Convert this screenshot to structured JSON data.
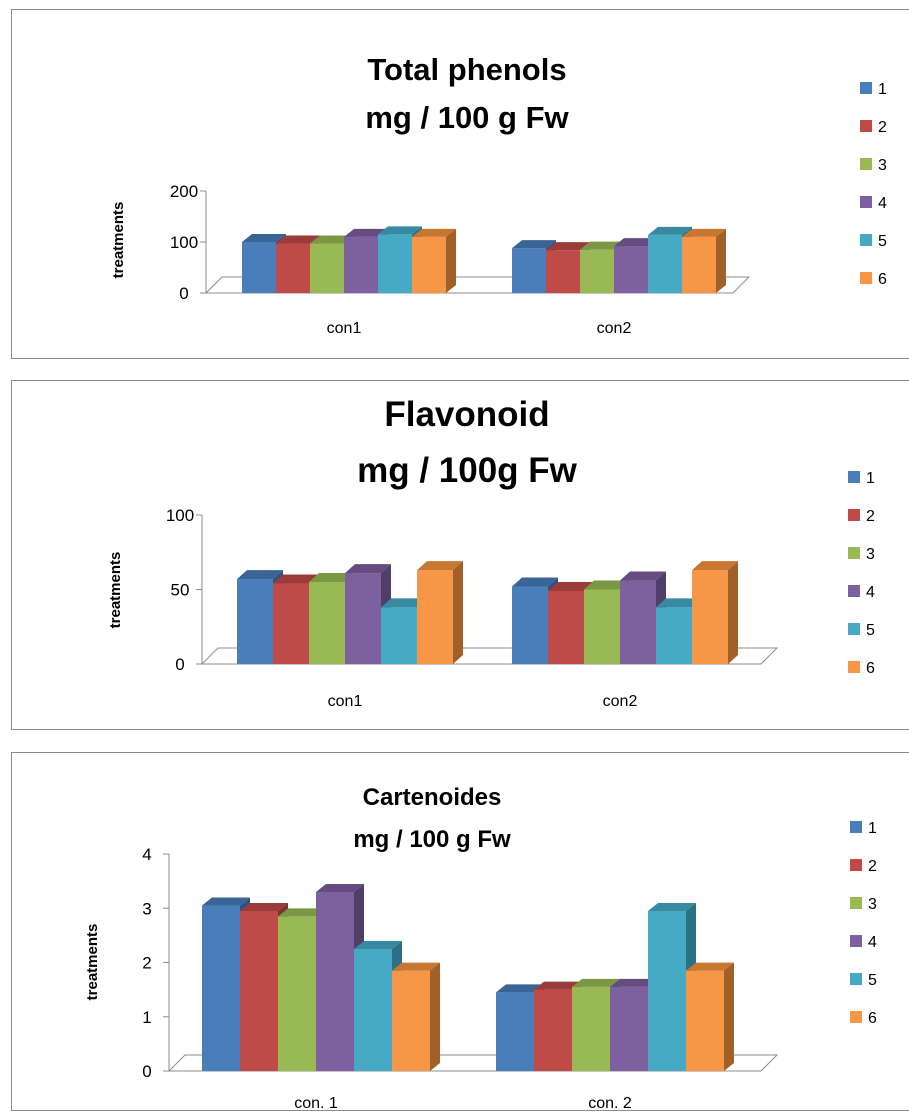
{
  "series_colors": {
    "1": {
      "front": "#4a7ebb",
      "top": "#3a6496",
      "side": "#2f5282"
    },
    "2": {
      "front": "#be4b48",
      "top": "#9c3c3a",
      "side": "#7e302e"
    },
    "3": {
      "front": "#98b954",
      "top": "#7b9744",
      "side": "#647b37"
    },
    "4": {
      "front": "#7d60a0",
      "top": "#654d82",
      "side": "#503d68"
    },
    "5": {
      "front": "#46aac5",
      "top": "#378aa1",
      "side": "#2c7083"
    },
    "6": {
      "front": "#f79646",
      "top": "#c87733",
      "side": "#a06028"
    }
  },
  "chart_data": [
    {
      "type": "bar",
      "title_lines": [
        "Total phenols",
        "mg / 100 g Fw"
      ],
      "ylabel": "treatments",
      "xlabel": "",
      "ylim": [
        0,
        200
      ],
      "yticks": [
        "0",
        "100",
        "200"
      ],
      "categories": [
        "con1",
        "con2"
      ],
      "legend_position": "right",
      "grid": false,
      "series": [
        {
          "name": "1",
          "values": [
            100,
            88
          ]
        },
        {
          "name": "2",
          "values": [
            97,
            84
          ]
        },
        {
          "name": "3",
          "values": [
            97,
            85
          ]
        },
        {
          "name": "4",
          "values": [
            110,
            92
          ]
        },
        {
          "name": "5",
          "values": [
            115,
            114
          ]
        },
        {
          "name": "6",
          "values": [
            110,
            110
          ]
        }
      ]
    },
    {
      "type": "bar",
      "title_lines": [
        "Flavonoid",
        "mg / 100g Fw"
      ],
      "ylabel": "treatments",
      "xlabel": "",
      "ylim": [
        0,
        100
      ],
      "yticks": [
        "0",
        "50",
        "100"
      ],
      "categories": [
        "con1",
        "con2"
      ],
      "legend_position": "right",
      "grid": false,
      "series": [
        {
          "name": "1",
          "values": [
            57,
            52
          ]
        },
        {
          "name": "2",
          "values": [
            54,
            49
          ]
        },
        {
          "name": "3",
          "values": [
            55,
            50
          ]
        },
        {
          "name": "4",
          "values": [
            61,
            56
          ]
        },
        {
          "name": "5",
          "values": [
            38,
            38
          ]
        },
        {
          "name": "6",
          "values": [
            63,
            63
          ]
        }
      ]
    },
    {
      "type": "bar",
      "title_lines": [
        "Cartenoides",
        "mg / 100 g Fw"
      ],
      "ylabel": "treatments",
      "xlabel": "",
      "ylim": [
        0,
        4
      ],
      "yticks": [
        "0",
        "1",
        "2",
        "3",
        "4"
      ],
      "categories": [
        "con. 1",
        "con. 2"
      ],
      "legend_position": "right",
      "grid": false,
      "series": [
        {
          "name": "1",
          "values": [
            3.05,
            1.45
          ]
        },
        {
          "name": "2",
          "values": [
            2.95,
            1.5
          ]
        },
        {
          "name": "3",
          "values": [
            2.85,
            1.55
          ]
        },
        {
          "name": "4",
          "values": [
            3.3,
            1.55
          ]
        },
        {
          "name": "5",
          "values": [
            2.25,
            2.95
          ]
        },
        {
          "name": "6",
          "values": [
            1.85,
            1.85
          ]
        }
      ]
    }
  ]
}
